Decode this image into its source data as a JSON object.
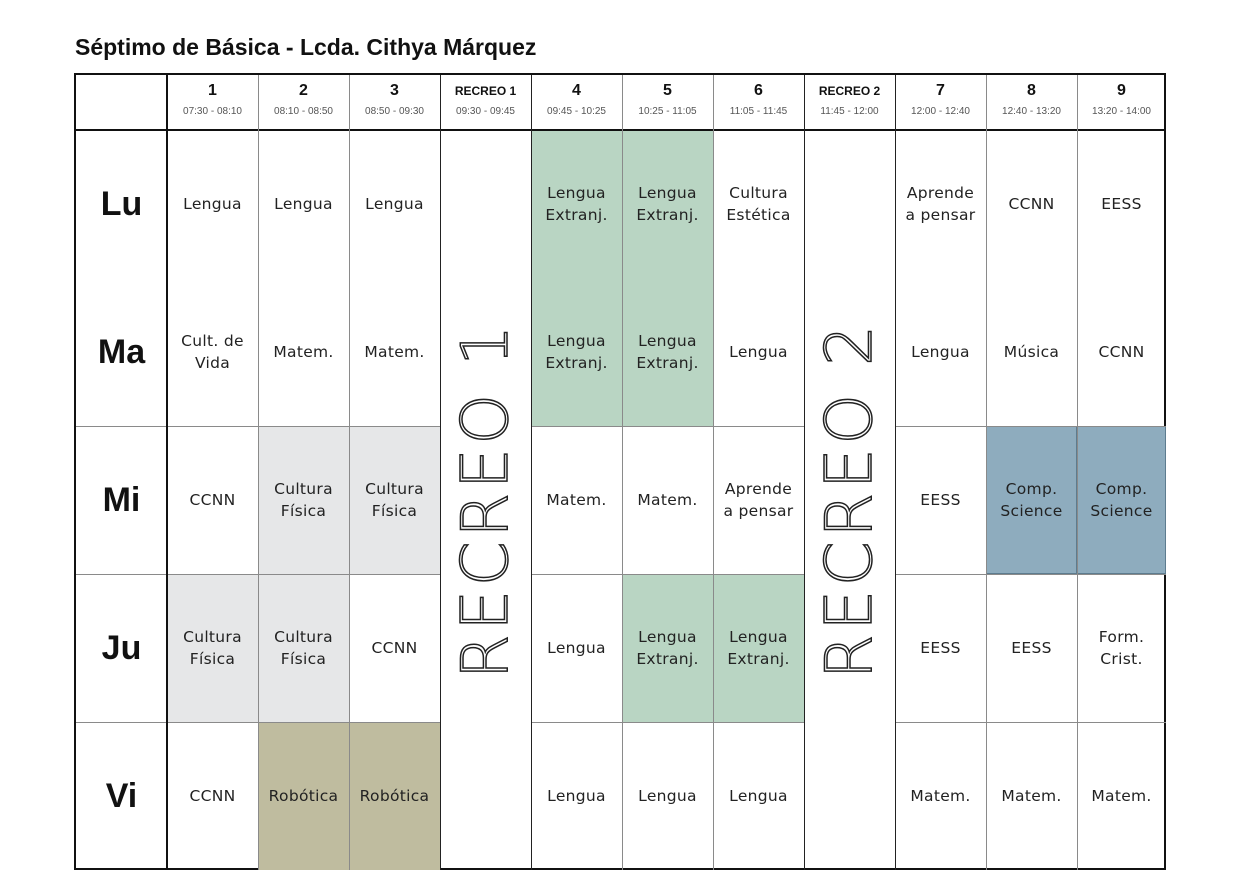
{
  "title": "Séptimo de Básica - Lcda. Cithya Márquez",
  "periods": [
    {
      "num": "1",
      "time": "07:30 - 08:10"
    },
    {
      "num": "2",
      "time": "08:10 - 08:50"
    },
    {
      "num": "3",
      "time": "08:50 - 09:30"
    },
    {
      "num": "RECREO 1",
      "time": "09:30 - 09:45"
    },
    {
      "num": "4",
      "time": "09:45 - 10:25"
    },
    {
      "num": "5",
      "time": "10:25 - 11:05"
    },
    {
      "num": "6",
      "time": "11:05 - 11:45"
    },
    {
      "num": "RECREO 2",
      "time": "11:45 - 12:00"
    },
    {
      "num": "7",
      "time": "12:00 - 12:40"
    },
    {
      "num": "8",
      "time": "12:40 - 13:20"
    },
    {
      "num": "9",
      "time": "13:20 - 14:00"
    }
  ],
  "recreo_labels": [
    "RECREO 1",
    "RECREO 2"
  ],
  "colors": {
    "green": "#b9d5c3",
    "grey": "#e6e7e8",
    "olive": "#bfbc9f",
    "blue": "#8eacbe"
  },
  "days": [
    {
      "label": "Lu",
      "cells": [
        {
          "text": "Lengua",
          "color": ""
        },
        {
          "text": "Lengua",
          "color": ""
        },
        {
          "text": "Lengua",
          "color": ""
        },
        {
          "text": "Lengua\nExtranj.",
          "color": "green"
        },
        {
          "text": "Lengua\nExtranj.",
          "color": "green"
        },
        {
          "text": "Cultura\nEstética",
          "color": ""
        },
        {
          "text": "Aprende\na pensar",
          "color": ""
        },
        {
          "text": "CCNN",
          "color": ""
        },
        {
          "text": "EESS",
          "color": ""
        }
      ]
    },
    {
      "label": "Ma",
      "cells": [
        {
          "text": "Cult. de\nVida",
          "color": ""
        },
        {
          "text": "Matem.",
          "color": ""
        },
        {
          "text": "Matem.",
          "color": ""
        },
        {
          "text": "Lengua\nExtranj.",
          "color": "green"
        },
        {
          "text": "Lengua\nExtranj.",
          "color": "green"
        },
        {
          "text": "Lengua",
          "color": ""
        },
        {
          "text": "Lengua",
          "color": ""
        },
        {
          "text": "Música",
          "color": ""
        },
        {
          "text": "CCNN",
          "color": ""
        }
      ]
    },
    {
      "label": "Mi",
      "cells": [
        {
          "text": "CCNN",
          "color": ""
        },
        {
          "text": "Cultura\nFísica",
          "color": "grey"
        },
        {
          "text": "Cultura\nFísica",
          "color": "grey"
        },
        {
          "text": "Matem.",
          "color": ""
        },
        {
          "text": "Matem.",
          "color": ""
        },
        {
          "text": "Aprende\na pensar",
          "color": ""
        },
        {
          "text": "EESS",
          "color": ""
        },
        {
          "text": "Comp.\nScience",
          "color": "blue"
        },
        {
          "text": "Comp.\nScience",
          "color": "blue"
        }
      ]
    },
    {
      "label": "Ju",
      "cells": [
        {
          "text": "Cultura\nFísica",
          "color": "grey"
        },
        {
          "text": "Cultura\nFísica",
          "color": "grey"
        },
        {
          "text": "CCNN",
          "color": ""
        },
        {
          "text": "Lengua",
          "color": ""
        },
        {
          "text": "Lengua\nExtranj.",
          "color": "green"
        },
        {
          "text": "Lengua\nExtranj.",
          "color": "green"
        },
        {
          "text": "EESS",
          "color": ""
        },
        {
          "text": "EESS",
          "color": ""
        },
        {
          "text": "Form.\nCrist.",
          "color": ""
        }
      ]
    },
    {
      "label": "Vi",
      "cells": [
        {
          "text": "CCNN",
          "color": ""
        },
        {
          "text": "Robótica",
          "color": "olive"
        },
        {
          "text": "Robótica",
          "color": "olive"
        },
        {
          "text": "Lengua",
          "color": ""
        },
        {
          "text": "Lengua",
          "color": ""
        },
        {
          "text": "Lengua",
          "color": ""
        },
        {
          "text": "Matem.",
          "color": ""
        },
        {
          "text": "Matem.",
          "color": ""
        },
        {
          "text": "Matem.",
          "color": ""
        }
      ]
    }
  ]
}
